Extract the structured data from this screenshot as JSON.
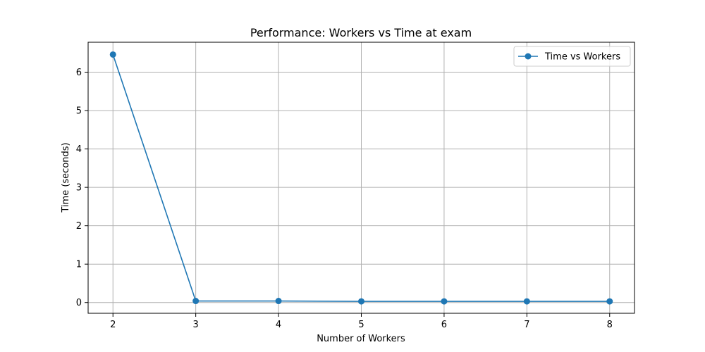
{
  "chart_data": {
    "type": "line",
    "title": "Performance: Workers vs Time at exam",
    "xlabel": "Number of Workers",
    "ylabel": "Time (seconds)",
    "x": [
      2,
      3,
      4,
      5,
      6,
      7,
      8
    ],
    "series": [
      {
        "name": "Time vs Workers",
        "values": [
          6.46,
          0.04,
          0.04,
          0.03,
          0.03,
          0.03,
          0.03
        ],
        "color": "#1f77b4",
        "marker": "circle"
      }
    ],
    "xlim": [
      1.7,
      8.3
    ],
    "ylim": [
      -0.28,
      6.78
    ],
    "xticks": [
      2,
      3,
      4,
      5,
      6,
      7,
      8
    ],
    "yticks": [
      0,
      1,
      2,
      3,
      4,
      5,
      6
    ],
    "grid": true,
    "legend_position": "top-right"
  }
}
